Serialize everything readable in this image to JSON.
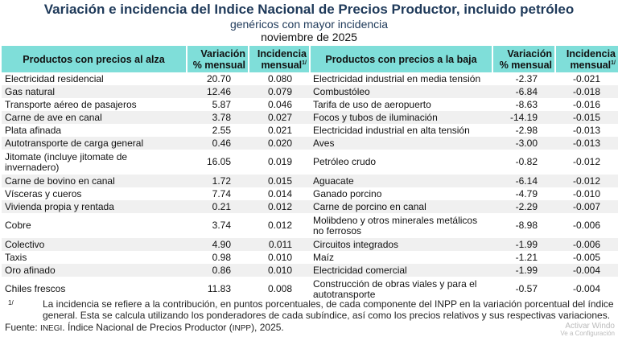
{
  "title": "Variación e incidencia del Indice Nacional de Precios Productor, incluido petróleo",
  "subtitle": "genéricos con mayor incidencia",
  "period": "noviembre de 2025",
  "headers": {
    "up_product": "Productos con precios al alza",
    "variation": "Variación % mensual",
    "incidence": "Incidencia mensual",
    "incidence_note": "1/",
    "down_product": "Productos con precios a la baja"
  },
  "rows": [
    {
      "up": "Electricidad residencial",
      "up_var": "20.70",
      "up_inc": "0.080",
      "down": "Electricidad industrial en media tensión",
      "down_var": "-2.37",
      "down_inc": "-0.021"
    },
    {
      "up": "Gas natural",
      "up_var": "12.46",
      "up_inc": "0.079",
      "down": "Combustóleo",
      "down_var": "-6.84",
      "down_inc": "-0.018"
    },
    {
      "up": "Transporte aéreo de pasajeros",
      "up_var": "5.87",
      "up_inc": "0.046",
      "down": "Tarifa de uso de aeropuerto",
      "down_var": "-8.63",
      "down_inc": "-0.016"
    },
    {
      "up": "Carne de ave en canal",
      "up_var": "3.78",
      "up_inc": "0.027",
      "down": "Focos y tubos de iluminación",
      "down_var": "-14.19",
      "down_inc": "-0.015"
    },
    {
      "up": "Plata afinada",
      "up_var": "2.55",
      "up_inc": "0.021",
      "down": "Electricidad industrial en alta tensión",
      "down_var": "-2.98",
      "down_inc": "-0.013"
    },
    {
      "up": "Autotransporte de carga general",
      "up_var": "0.46",
      "up_inc": "0.020",
      "down": "Aves",
      "down_var": "-3.00",
      "down_inc": "-0.013"
    },
    {
      "up": "Jitomate (incluye jitomate de invernadero)",
      "up_var": "16.05",
      "up_inc": "0.019",
      "down": "Petróleo crudo",
      "down_var": "-0.82",
      "down_inc": "-0.012"
    },
    {
      "up": "Carne de bovino en canal",
      "up_var": "1.72",
      "up_inc": "0.015",
      "down": "Aguacate",
      "down_var": "-6.14",
      "down_inc": "-0.012"
    },
    {
      "up": "Vísceras y cueros",
      "up_var": "7.74",
      "up_inc": "0.014",
      "down": "Ganado porcino",
      "down_var": "-4.79",
      "down_inc": "-0.010"
    },
    {
      "up": "Vivienda propia y rentada",
      "up_var": "0.21",
      "up_inc": "0.012",
      "down": "Carne de porcino en canal",
      "down_var": "-2.29",
      "down_inc": "-0.007"
    },
    {
      "up": "Cobre",
      "up_var": "3.74",
      "up_inc": "0.012",
      "down": "Molibdeno y otros minerales metálicos no ferrosos",
      "down_var": "-8.98",
      "down_inc": "-0.006"
    },
    {
      "up": "Colectivo",
      "up_var": "4.90",
      "up_inc": "0.011",
      "down": "Circuitos integrados",
      "down_var": "-1.99",
      "down_inc": "-0.006"
    },
    {
      "up": "Taxis",
      "up_var": "0.98",
      "up_inc": "0.010",
      "down": "Maíz",
      "down_var": "-1.21",
      "down_inc": "-0.005"
    },
    {
      "up": "Oro afinado",
      "up_var": "0.86",
      "up_inc": "0.010",
      "down": "Electricidad comercial",
      "down_var": "-1.99",
      "down_inc": "-0.004"
    },
    {
      "up": "Chiles frescos",
      "up_var": "11.83",
      "up_inc": "0.008",
      "down": "Construcción de obras viales y para el autotransporte",
      "down_var": "-0.57",
      "down_inc": "-0.004"
    }
  ],
  "footnote": {
    "mark": "1/",
    "text": "La incidencia se refiere a la contribución, en puntos porcentuales, de cada componente del INPP en la variación porcentual del índice general. Esta se calcula utilizando los ponderadores de cada subíndice, así como los precios relativos y sus respectivas variaciones."
  },
  "source": {
    "label": "Fuente:",
    "org": "INEGI",
    "text": ". Índice Nacional de Precios Productor (",
    "abbr": "INPP",
    "end": "), 2025."
  },
  "watermark": {
    "line1": "Activar Windo",
    "line2": "Ve a Configuración"
  },
  "colors": {
    "header_bg": "#7fded9",
    "title": "#1f3a5a",
    "stripe": "#f0f0f0"
  }
}
